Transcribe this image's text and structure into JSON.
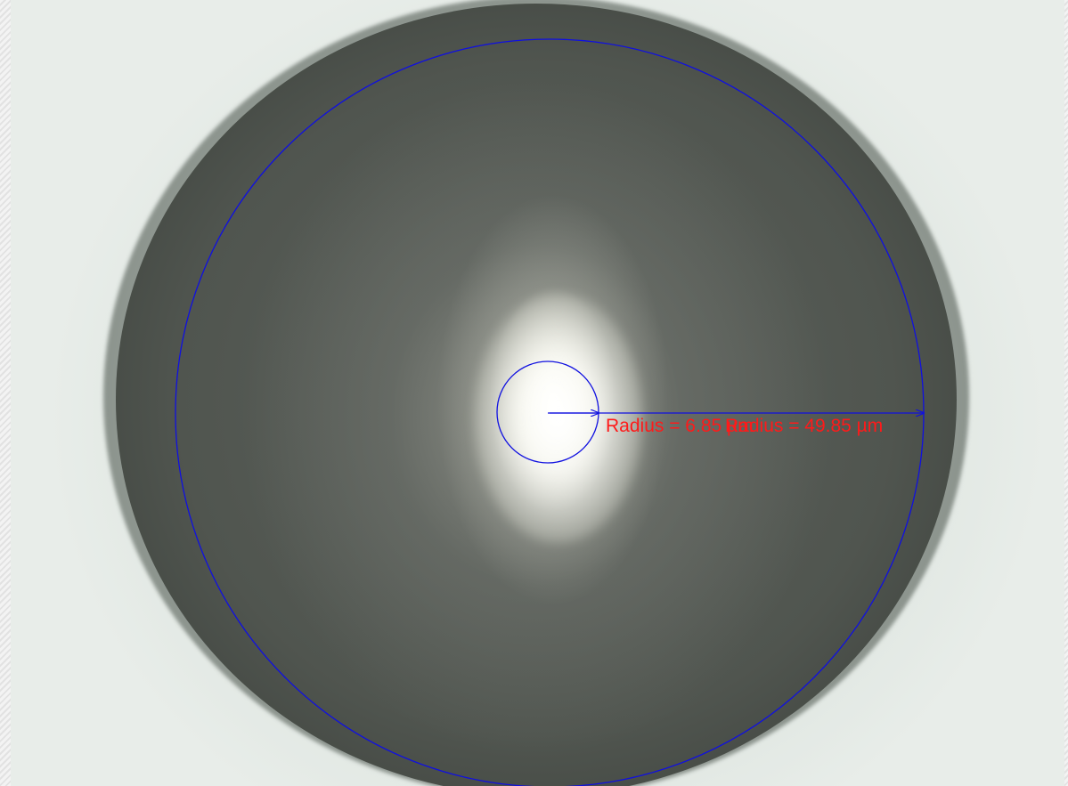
{
  "measurements": {
    "inner_label": "Radius = 6.85 µm",
    "outer_label": "Radius = 49.85 µm"
  },
  "colors": {
    "circle_stroke": "#1010e0",
    "label_text": "#ff1a1a"
  }
}
